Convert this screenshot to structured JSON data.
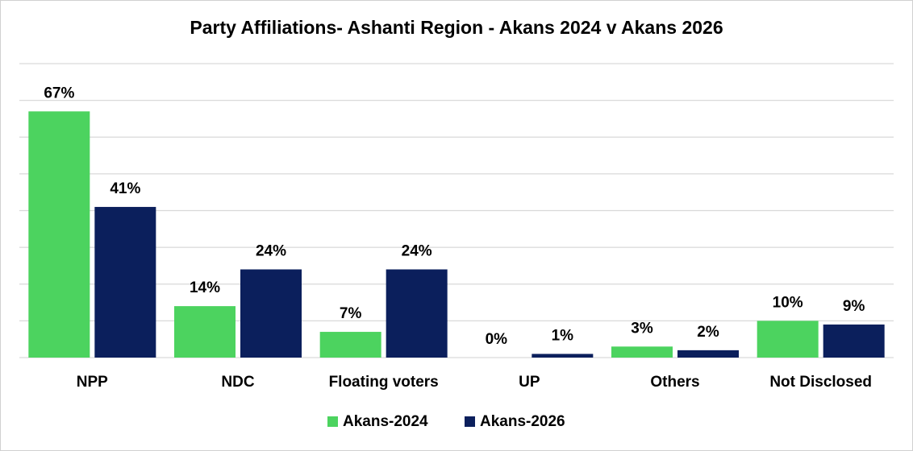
{
  "chart_data": {
    "type": "bar",
    "title": "Party Affiliations- Ashanti Region - Akans 2024 v Akans 2026",
    "categories": [
      "NPP",
      "NDC",
      "Floating voters",
      "UP",
      "Others",
      "Not Disclosed"
    ],
    "series": [
      {
        "name": "Akans-2024",
        "color": "#4cd35f",
        "values": [
          67,
          14,
          7,
          0,
          3,
          10
        ],
        "value_labels": [
          "67%",
          "14%",
          "7%",
          "0%",
          "3%",
          "10%"
        ]
      },
      {
        "name": "Akans-2026",
        "color": "#0b1f5c",
        "values": [
          41,
          24,
          24,
          1,
          2,
          9
        ],
        "value_labels": [
          "41%",
          "24%",
          "24%",
          "1%",
          "2%",
          "9%"
        ]
      }
    ],
    "ylim": [
      0,
      80
    ],
    "yticks": [
      0,
      10,
      20,
      30,
      40,
      50,
      60,
      70,
      80
    ],
    "grid": true,
    "legend": "bottom"
  }
}
